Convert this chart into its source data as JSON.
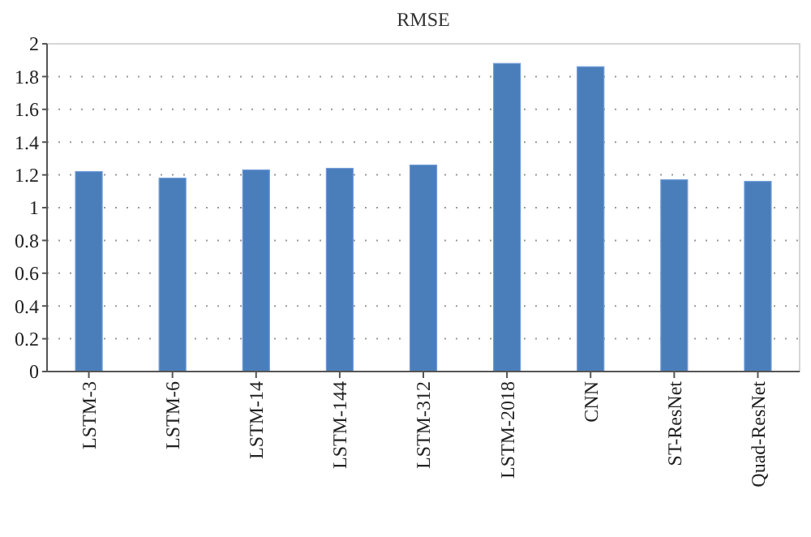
{
  "chart_data": {
    "type": "bar",
    "title": "RMSE",
    "categories": [
      "LSTM-3",
      "LSTM-6",
      "LSTM-14",
      "LSTM-144",
      "LSTM-312",
      "LSTM-2018",
      "CNN",
      "ST-ResNet",
      "Quad-ResNet"
    ],
    "values": [
      1.22,
      1.18,
      1.23,
      1.24,
      1.26,
      1.88,
      1.86,
      1.17,
      1.16
    ],
    "color": "#4a7ebb",
    "ylim": [
      0,
      2
    ],
    "yticks": [
      0,
      0.2,
      0.4,
      0.6,
      0.8,
      1,
      1.2,
      1.4,
      1.6,
      1.8,
      2
    ],
    "grid": "y"
  }
}
